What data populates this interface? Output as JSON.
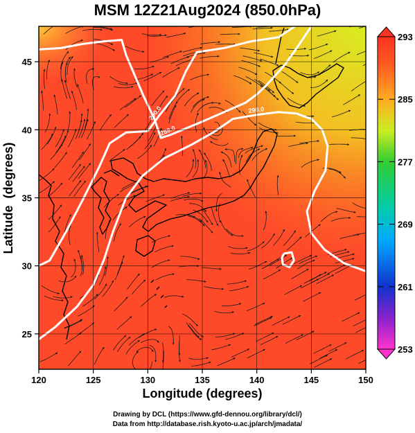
{
  "title": "MSM 12Z21Aug2024 (850.0hPa)",
  "chart_data": {
    "type": "heatmap",
    "xlabel": "Longitude (degrees)",
    "ylabel": "Latitude  (degrees)",
    "xlim": [
      120,
      150
    ],
    "ylim": [
      22.4,
      47.6
    ],
    "x_ticks": [
      "120",
      "125",
      "130",
      "135",
      "140",
      "145",
      "150"
    ],
    "y_ticks": [
      "25",
      "30",
      "35",
      "40",
      "45"
    ],
    "grid": true,
    "colorbar": {
      "min": 253,
      "max": 293,
      "ticks": [
        "293",
        "285",
        "277",
        "269",
        "261",
        "253"
      ],
      "colors": [
        "#ff33cc",
        "#1133cc",
        "#00aaff",
        "#00ccaa",
        "#33cc33",
        "#ccee22",
        "#ffaa22",
        "#ff5522",
        "#ff3322"
      ]
    },
    "contours": [
      {
        "label": "288.0",
        "path": [
          [
            120,
            45.9
          ],
          [
            122,
            46.0
          ],
          [
            124,
            46.3
          ],
          [
            126,
            46.5
          ],
          [
            127.6,
            46.6
          ],
          [
            128,
            45.5
          ],
          [
            129.6,
            42.5
          ],
          [
            130.6,
            40.8
          ],
          [
            131.2,
            39.4
          ],
          [
            132,
            39.6
          ],
          [
            133.2,
            40.0
          ],
          [
            135,
            40.6
          ],
          [
            137,
            41.3
          ],
          [
            139,
            42.0
          ],
          [
            140,
            42.6
          ],
          [
            140.8,
            43.2
          ],
          [
            142.6,
            44.8
          ],
          [
            144,
            46.4
          ],
          [
            145,
            47.6
          ]
        ]
      },
      {
        "label": "290.0",
        "path": [
          [
            120,
            30.0
          ],
          [
            121,
            30.4
          ],
          [
            122.5,
            32.5
          ],
          [
            124,
            34.8
          ],
          [
            125.5,
            37.2
          ],
          [
            126.5,
            39.0
          ],
          [
            128,
            39.8
          ],
          [
            130,
            39.9
          ],
          [
            131,
            41.0
          ],
          [
            132.5,
            42.5
          ],
          [
            133.5,
            44.3
          ],
          [
            134.5,
            45.7
          ],
          [
            137,
            46.0
          ],
          [
            139.5,
            46.5
          ],
          [
            142,
            46.8
          ],
          [
            143.5,
            47.6
          ]
        ]
      },
      {
        "label": "290.0",
        "path": [
          [
            120,
            24.6
          ],
          [
            121.5,
            25.5
          ],
          [
            123.5,
            27.0
          ],
          [
            125,
            28.6
          ],
          [
            126,
            30.5
          ],
          [
            126.8,
            32.5
          ],
          [
            128,
            35.0
          ],
          [
            129.5,
            36.6
          ],
          [
            131.5,
            37.9
          ],
          [
            134,
            38.9
          ],
          [
            136,
            39.8
          ],
          [
            137.8,
            40.8
          ],
          [
            140,
            41.1
          ],
          [
            142,
            41.3
          ],
          [
            143.6,
            41.2
          ],
          [
            145,
            40.8
          ],
          [
            146,
            40.0
          ],
          [
            146.5,
            38.8
          ],
          [
            146.3,
            37.0
          ],
          [
            145.3,
            35.5
          ],
          [
            144.6,
            34.0
          ],
          [
            145,
            32.4
          ],
          [
            146.2,
            31.2
          ],
          [
            148,
            30.2
          ],
          [
            150,
            29.6
          ]
        ]
      },
      {
        "label": "",
        "path": [
          [
            142.5,
            30.9
          ],
          [
            143.2,
            31.0
          ],
          [
            143.4,
            30.4
          ],
          [
            143.0,
            29.9
          ],
          [
            142.4,
            30.1
          ],
          [
            142.3,
            30.6
          ],
          [
            142.5,
            30.9
          ]
        ]
      }
    ]
  },
  "credits": {
    "line1": "Drawing by DCL (https://www.gfd-dennou.org/library/dcl/)",
    "line2": "Data from http://database.rish.kyoto-u.ac.jp/arch/jmadata/"
  }
}
